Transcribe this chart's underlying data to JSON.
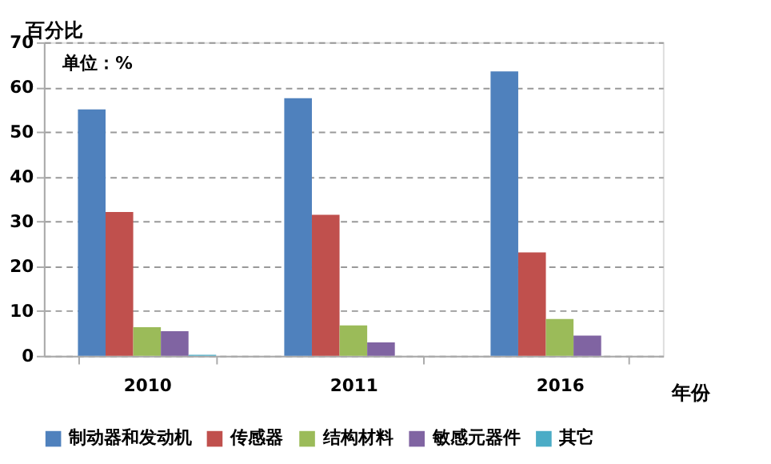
{
  "chart_data": {
    "type": "bar",
    "ylabel": "百分比",
    "xlabel": "年份",
    "annotations": [
      "单位：%"
    ],
    "categories": [
      "2010",
      "2011",
      "2016"
    ],
    "series": [
      {
        "name": "制动器和发动机",
        "color": "#4f81bd",
        "values": [
          55,
          57.5,
          63.5
        ]
      },
      {
        "name": "传感器",
        "color": "#c0504d",
        "values": [
          32.1,
          31.5,
          23.1
        ]
      },
      {
        "name": "结构材料",
        "color": "#9bbb59",
        "values": [
          6.4,
          6.8,
          8.2
        ]
      },
      {
        "name": "敏感元器件",
        "color": "#8064a2",
        "values": [
          5.5,
          3.0,
          4.5
        ]
      },
      {
        "name": "其它",
        "color": "#4bacc6",
        "values": [
          0.2,
          null,
          null
        ]
      }
    ],
    "ylim": [
      0,
      70
    ],
    "yticks": [
      0,
      10,
      20,
      30,
      40,
      50,
      60,
      70
    ],
    "grid": "y",
    "legend": "bottom"
  }
}
